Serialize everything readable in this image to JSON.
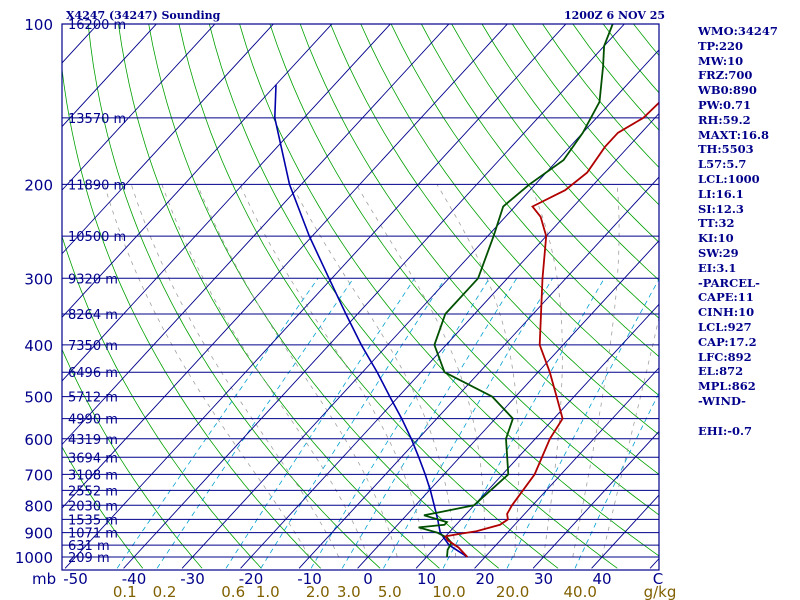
{
  "header": {
    "station": "X4247 (34247) Sounding",
    "time": "1200Z  6 NOV 25"
  },
  "indices": [
    "WMO:34247",
    "TP:220",
    "MW:10",
    "FRZ:700",
    "WB0:890",
    "PW:0.71",
    "RH:59.2",
    "MAXT:16.8",
    "TH:5503",
    "L57:5.7",
    "LCL:1000",
    "LI:16.1",
    "SI:12.3",
    "TT:32",
    "KI:10",
    "SW:29",
    "EI:3.1",
    "-PARCEL-",
    "CAPE:11",
    "CINH:10",
    "LCL:927",
    "CAP:17.2",
    "LFC:892",
    "EL:872",
    "MPL:862",
    "-WIND-",
    "",
    "EHI:-0.7"
  ],
  "colors": {
    "frame": "#00008b",
    "isobar": "#00008b",
    "isotherm": "#00008b",
    "dry_adiabat": "#00a000",
    "moist_adiabat": "#a0a0a0",
    "mixing_ratio": "#00a0d0",
    "temperature": "#b00000",
    "dewpoint": "#005000",
    "parcel": "#0000aa",
    "text": "#00008b",
    "mixing_label": "#806000"
  },
  "chart_data": {
    "type": "skew-t",
    "title": "X4247 (34247) Sounding",
    "pressure_range": [
      1000,
      100
    ],
    "temperature_range": [
      -50,
      50
    ],
    "x_label_prefix": "mb",
    "x_unit_end": "C",
    "mixing_unit": "g/kg",
    "pressure_ticks": [
      {
        "p": 100,
        "label": "100"
      },
      {
        "p": 200,
        "label": "200"
      },
      {
        "p": 300,
        "label": "300"
      },
      {
        "p": 400,
        "label": "400"
      },
      {
        "p": 500,
        "label": "500"
      },
      {
        "p": 600,
        "label": "600"
      },
      {
        "p": 700,
        "label": "700"
      },
      {
        "p": 800,
        "label": "800"
      },
      {
        "p": 900,
        "label": "900"
      },
      {
        "p": 1000,
        "label": "1000"
      }
    ],
    "temperature_ticks": [
      {
        "t": -50,
        "label": "-50"
      },
      {
        "t": -40,
        "label": "-40"
      },
      {
        "t": -30,
        "label": "-30"
      },
      {
        "t": -20,
        "label": "-20"
      },
      {
        "t": -10,
        "label": "-10"
      },
      {
        "t": 0,
        "label": "0"
      },
      {
        "t": 10,
        "label": "10"
      },
      {
        "t": 20,
        "label": "20"
      },
      {
        "t": 30,
        "label": "30"
      },
      {
        "t": 40,
        "label": "40"
      }
    ],
    "height_levels": [
      {
        "p": 100,
        "label": "16200 m"
      },
      {
        "p": 150,
        "label": "13570 m"
      },
      {
        "p": 200,
        "label": "11890 m"
      },
      {
        "p": 250,
        "label": "10500 m"
      },
      {
        "p": 300,
        "label": "9320 m"
      },
      {
        "p": 350,
        "label": "8264 m"
      },
      {
        "p": 400,
        "label": "7350 m"
      },
      {
        "p": 450,
        "label": "6496 m"
      },
      {
        "p": 500,
        "label": "5712 m"
      },
      {
        "p": 550,
        "label": "4990 m"
      },
      {
        "p": 600,
        "label": "4319 m"
      },
      {
        "p": 650,
        "label": "3694 m"
      },
      {
        "p": 700,
        "label": "3108 m"
      },
      {
        "p": 750,
        "label": "2552 m"
      },
      {
        "p": 800,
        "label": "2030 m"
      },
      {
        "p": 850,
        "label": "1535 m"
      },
      {
        "p": 900,
        "label": "1071 m"
      },
      {
        "p": 950,
        "label": "631 m"
      },
      {
        "p": 1000,
        "label": "209 m"
      }
    ],
    "mixing_ratio_labels": [
      {
        "w": 0.1,
        "label": "0.1"
      },
      {
        "w": 0.2,
        "label": "0.2"
      },
      {
        "w": 0.6,
        "label": "0.6"
      },
      {
        "w": 1.0,
        "label": "1.0"
      },
      {
        "w": 2.0,
        "label": "2.0"
      },
      {
        "w": 3.0,
        "label": "3.0"
      },
      {
        "w": 5.0,
        "label": "5.0"
      },
      {
        "w": 10.0,
        "label": "10.0"
      },
      {
        "w": 20.0,
        "label": "20.0"
      },
      {
        "w": 40.0,
        "label": "40.0"
      }
    ],
    "temperature_profile": [
      [
        1000,
        17.0
      ],
      [
        960,
        14.0
      ],
      [
        930,
        11.0
      ],
      [
        915,
        10.0
      ],
      [
        905,
        12.0
      ],
      [
        895,
        14.5
      ],
      [
        870,
        17.5
      ],
      [
        850,
        18.0
      ],
      [
        830,
        17.0
      ],
      [
        800,
        16.5
      ],
      [
        700,
        15.5
      ],
      [
        600,
        12.5
      ],
      [
        550,
        11.5
      ],
      [
        500,
        7.0
      ],
      [
        450,
        2.0
      ],
      [
        400,
        -4.0
      ],
      [
        300,
        -14.0
      ],
      [
        250,
        -20.0
      ],
      [
        230,
        -24.0
      ],
      [
        220,
        -27.0
      ],
      [
        205,
        -24.0
      ],
      [
        190,
        -23.0
      ],
      [
        170,
        -24.0
      ],
      [
        160,
        -24.0
      ],
      [
        150,
        -22.0
      ],
      [
        120,
        -21.0
      ],
      [
        100,
        -22.0
      ]
    ],
    "dewpoint_profile": [
      [
        1000,
        13.5
      ],
      [
        970,
        12.5
      ],
      [
        940,
        12.0
      ],
      [
        920,
        10.5
      ],
      [
        900,
        8.0
      ],
      [
        880,
        4.0
      ],
      [
        870,
        8.0
      ],
      [
        860,
        8.0
      ],
      [
        850,
        6.0
      ],
      [
        835,
        3.0
      ],
      [
        825,
        5.0
      ],
      [
        815,
        7.0
      ],
      [
        800,
        10.0
      ],
      [
        700,
        11.0
      ],
      [
        600,
        5.0
      ],
      [
        550,
        3.0
      ],
      [
        500,
        -4.0
      ],
      [
        450,
        -16.0
      ],
      [
        400,
        -22.0
      ],
      [
        350,
        -25.0
      ],
      [
        300,
        -25.0
      ],
      [
        250,
        -29.0
      ],
      [
        220,
        -32.0
      ],
      [
        200,
        -31.0
      ],
      [
        180,
        -29.0
      ],
      [
        160,
        -30.0
      ],
      [
        140,
        -32.0
      ],
      [
        120,
        -37.0
      ],
      [
        110,
        -40.0
      ],
      [
        100,
        -42.0
      ]
    ],
    "parcel_profile": [
      [
        1000,
        17.0
      ],
      [
        950,
        12.0
      ],
      [
        900,
        8.5
      ],
      [
        850,
        6.0
      ],
      [
        800,
        3.2
      ],
      [
        750,
        0.2
      ],
      [
        700,
        -3.2
      ],
      [
        650,
        -7.0
      ],
      [
        600,
        -11.2
      ],
      [
        550,
        -16.0
      ],
      [
        500,
        -21.5
      ],
      [
        450,
        -27.5
      ],
      [
        400,
        -34.5
      ],
      [
        350,
        -42.0
      ],
      [
        300,
        -50.5
      ],
      [
        250,
        -60.5
      ],
      [
        200,
        -72.0
      ],
      [
        150,
        -85.0
      ],
      [
        130,
        -90.0
      ]
    ]
  }
}
